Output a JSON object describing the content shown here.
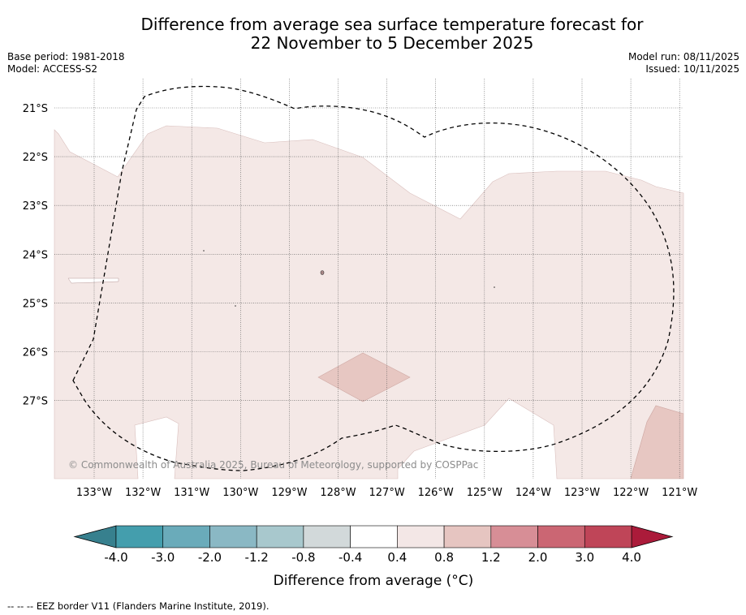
{
  "title": {
    "line1": "Difference from average sea surface temperature forecast for",
    "line2": "22 November to 5 December 2025"
  },
  "meta_left": {
    "base_period": "Base period: 1981-2018",
    "model": "Model: ACCESS-S2"
  },
  "meta_right": {
    "model_run": "Model run: 08/11/2025",
    "issued": "Issued: 10/11/2025"
  },
  "map": {
    "lat_labels": [
      "21°S",
      "22°S",
      "23°S",
      "24°S",
      "25°S",
      "26°S",
      "27°S"
    ],
    "lon_labels": [
      "133°W",
      "132°W",
      "131°W",
      "130°W",
      "129°W",
      "128°W",
      "127°W",
      "126°W",
      "125°W",
      "124°W",
      "123°W",
      "122°W",
      "121°W"
    ],
    "watermark": "© Commonwealth of Australia 2025, Bureau of Meteorology, supported by COSPPac"
  },
  "colorbar": {
    "tick_labels": [
      "-4.0",
      "-3.0",
      "-2.0",
      "-1.2",
      "-0.8",
      "-0.4",
      "0.4",
      "0.8",
      "1.2",
      "2.0",
      "3.0",
      "4.0"
    ],
    "colors": [
      "#449ead",
      "#6aabba",
      "#8ab8c4",
      "#a8c8cd",
      "#d2d9da",
      "#ffffff",
      "#f3e7e6",
      "#e6c5c1",
      "#d78e96",
      "#cb6673",
      "#bf4558"
    ],
    "under_color": "#37808e",
    "over_color": "#ab1b3a",
    "label": "Difference from average (°C)"
  },
  "legend_note": "--  --  -- EEZ border V11 (Flanders Marine Institute, 2019).",
  "colors": {
    "anomaly_0_4_to_0_8": "#f4e8e6",
    "anomaly_0_8_to_1_2": "#e7c7c2",
    "eez_border": "#000000"
  }
}
